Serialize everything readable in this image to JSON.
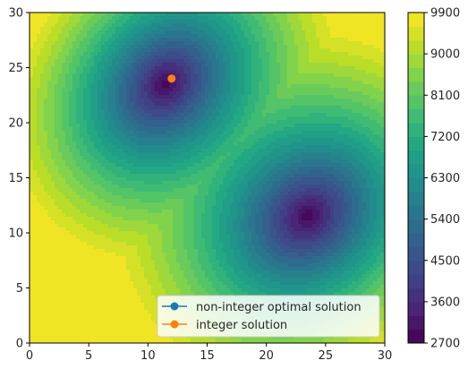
{
  "chart_data": {
    "type": "contourf",
    "title": "",
    "xlabel": "",
    "ylabel": "",
    "xlim": [
      0,
      30
    ],
    "ylim": [
      0,
      30
    ],
    "x_ticks": [
      0,
      5,
      10,
      15,
      20,
      25,
      30
    ],
    "y_ticks": [
      0,
      5,
      10,
      15,
      20,
      25,
      30
    ],
    "colorbar": {
      "colormap": "viridis",
      "range": [
        2700,
        9900
      ],
      "ticks": [
        2700,
        3600,
        4500,
        5400,
        6300,
        7200,
        8100,
        9000,
        9900
      ],
      "level_step": 300
    },
    "surface": {
      "base": 9900,
      "minima": [
        {
          "x": 11.5,
          "y": 23.5,
          "value": 2900
        },
        {
          "x": 23.5,
          "y": 11.5,
          "value": 2750
        }
      ]
    },
    "series": [
      {
        "name": "non-integer optimal solution",
        "color": "#1f77b4",
        "marker": "circle",
        "points": [
          {
            "x": 12.0,
            "y": 24.0
          }
        ]
      },
      {
        "name": "integer solution",
        "color": "#ff7f0e",
        "marker": "circle",
        "points": [
          {
            "x": 12,
            "y": 24
          }
        ]
      }
    ],
    "legend_position": "lower-right"
  }
}
